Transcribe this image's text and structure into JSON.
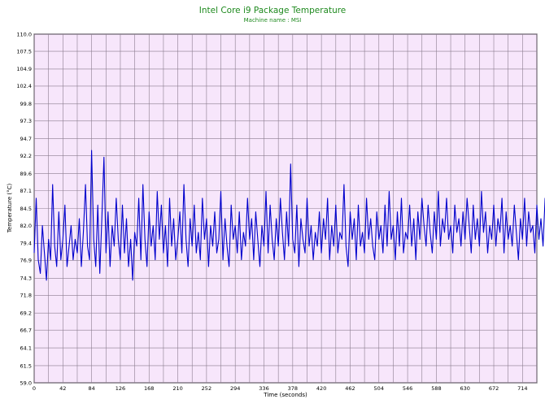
{
  "chart_data": {
    "type": "line",
    "title": "Intel Core i9 Package Temperature",
    "subtitle": "Machine name : MSI",
    "xlabel": "Time (seconds)",
    "ylabel": "Temperature (°C)",
    "xlim": [
      0,
      735
    ],
    "ylim": [
      59.0,
      110.0
    ],
    "x_ticks": [
      0,
      42,
      84,
      126,
      168,
      210,
      252,
      294,
      336,
      378,
      420,
      462,
      504,
      546,
      588,
      630,
      672,
      714
    ],
    "y_ticks": [
      "59.0",
      "61.5",
      "64.1",
      "66.7",
      "69.2",
      "71.8",
      "74.3",
      "76.9",
      "79.4",
      "82.0",
      "84.5",
      "87.1",
      "89.6",
      "92.2",
      "94.7",
      "97.3",
      "99.8",
      "102.4",
      "104.9",
      "107.5",
      "110.0"
    ],
    "grid": true,
    "colors": {
      "background": "#f7e6fb",
      "grid": "#8b7d8f",
      "line": "#0000cc",
      "title": "#1f8a1f"
    },
    "series": [
      {
        "values_interval_seconds": 3,
        "values": [
          78,
          86,
          77,
          75,
          82,
          78,
          74,
          80,
          77,
          88,
          79,
          76,
          84,
          77,
          80,
          85,
          76,
          79,
          82,
          77,
          80,
          78,
          83,
          76,
          81,
          88,
          79,
          77,
          93,
          80,
          76,
          85,
          75,
          83,
          92,
          78,
          84,
          76,
          82,
          79,
          86,
          80,
          77,
          85,
          78,
          83,
          76,
          80,
          74,
          81,
          79,
          86,
          77,
          88,
          80,
          76,
          84,
          79,
          82,
          77,
          87,
          80,
          85,
          78,
          82,
          76,
          86,
          79,
          83,
          77,
          80,
          84,
          78,
          88,
          80,
          76,
          83,
          79,
          85,
          78,
          81,
          77,
          86,
          80,
          83,
          76,
          82,
          79,
          84,
          78,
          80,
          87,
          77,
          83,
          79,
          76,
          85,
          80,
          82,
          78,
          84,
          77,
          81,
          79,
          86,
          80,
          83,
          77,
          84,
          80,
          76,
          82,
          79,
          87,
          78,
          85,
          80,
          77,
          83,
          79,
          86,
          81,
          77,
          84,
          79,
          91,
          80,
          78,
          85,
          76,
          83,
          80,
          78,
          86,
          79,
          82,
          77,
          81,
          79,
          84,
          78,
          83,
          80,
          86,
          77,
          82,
          79,
          85,
          78,
          81,
          80,
          88,
          79,
          76,
          84,
          80,
          83,
          77,
          85,
          79,
          81,
          78,
          86,
          80,
          83,
          79,
          77,
          84,
          80,
          82,
          78,
          85,
          79,
          87,
          80,
          82,
          77,
          84,
          79,
          86,
          78,
          81,
          80,
          85,
          79,
          83,
          77,
          84,
          80,
          86,
          82,
          79,
          85,
          81,
          78,
          84,
          80,
          87,
          79,
          83,
          81,
          86,
          80,
          82,
          78,
          85,
          81,
          83,
          79,
          84,
          80,
          86,
          82,
          78,
          85,
          80,
          83,
          79,
          87,
          81,
          84,
          78,
          82,
          80,
          85,
          79,
          83,
          81,
          86,
          78,
          84,
          80,
          82,
          79,
          85,
          81,
          77,
          83,
          80,
          86,
          79,
          84,
          81,
          82,
          78,
          85,
          80,
          83,
          79,
          86,
          81,
          84,
          80,
          82,
          79,
          85,
          78,
          83,
          81,
          86,
          80,
          84,
          79,
          82,
          81,
          85,
          77,
          88,
          80,
          83
        ]
      }
    ]
  }
}
